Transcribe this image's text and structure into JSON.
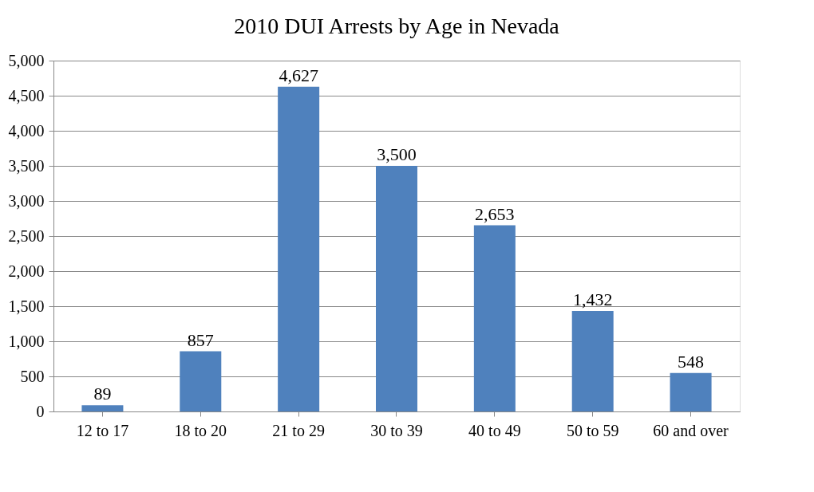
{
  "chart_data": {
    "type": "bar",
    "title": "2010 DUI Arrests by Age in Nevada",
    "categories": [
      "12 to 17",
      "18 to 20",
      "21 to 29",
      "30 to 39",
      "40 to 49",
      "50 to 59",
      "60 and over"
    ],
    "values": [
      89,
      857,
      4627,
      3500,
      2653,
      1432,
      548
    ],
    "value_labels": [
      "89",
      "857",
      "4,627",
      "3,500",
      "2,653",
      "1,432",
      "548"
    ],
    "color": "#4f81bd",
    "ylim": [
      0,
      5000
    ],
    "yticks": [
      0,
      {
        "value": 500,
        "label": "500"
      },
      {
        "value": 1000,
        "label": "1,000"
      },
      {
        "value": 1500,
        "label": "1,500"
      },
      {
        "value": 2000,
        "label": "2,000"
      },
      {
        "value": 2500,
        "label": "2,500"
      },
      {
        "value": 3000,
        "label": "3,000"
      },
      {
        "value": 3500,
        "label": "3,500"
      },
      {
        "value": 4000,
        "label": "4,000"
      },
      {
        "value": 4500,
        "label": "4,500"
      },
      {
        "value": 5000,
        "label": "5,000"
      }
    ],
    "grid": "y"
  }
}
